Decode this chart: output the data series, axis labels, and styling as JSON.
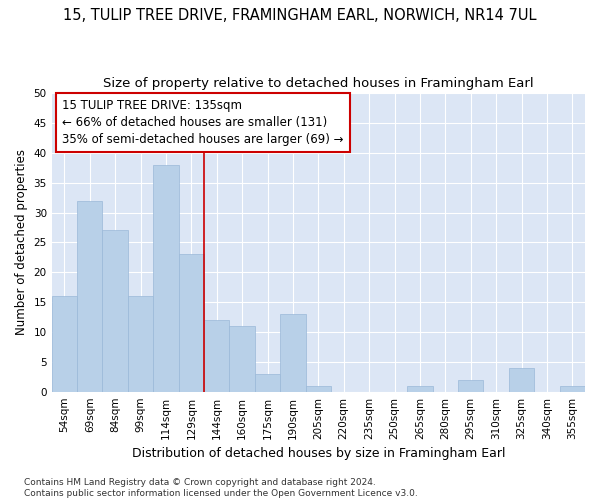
{
  "title": "15, TULIP TREE DRIVE, FRAMINGHAM EARL, NORWICH, NR14 7UL",
  "subtitle": "Size of property relative to detached houses in Framingham Earl",
  "xlabel": "Distribution of detached houses by size in Framingham Earl",
  "ylabel": "Number of detached properties",
  "categories": [
    "54sqm",
    "69sqm",
    "84sqm",
    "99sqm",
    "114sqm",
    "129sqm",
    "144sqm",
    "160sqm",
    "175sqm",
    "190sqm",
    "205sqm",
    "220sqm",
    "235sqm",
    "250sqm",
    "265sqm",
    "280sqm",
    "295sqm",
    "310sqm",
    "325sqm",
    "340sqm",
    "355sqm"
  ],
  "values": [
    16,
    32,
    27,
    16,
    38,
    23,
    12,
    11,
    3,
    13,
    1,
    0,
    0,
    0,
    1,
    0,
    2,
    0,
    4,
    0,
    1
  ],
  "bar_color": "#b8d0e8",
  "bar_edge_color": "#9ab8d8",
  "fig_background_color": "#ffffff",
  "axes_background_color": "#dce6f5",
  "grid_color": "#ffffff",
  "vline_color": "#cc0000",
  "annotation_text": "15 TULIP TREE DRIVE: 135sqm\n← 66% of detached houses are smaller (131)\n35% of semi-detached houses are larger (69) →",
  "annotation_box_color": "#ffffff",
  "annotation_box_edge": "#cc0000",
  "ylim": [
    0,
    50
  ],
  "yticks": [
    0,
    5,
    10,
    15,
    20,
    25,
    30,
    35,
    40,
    45,
    50
  ],
  "footer": "Contains HM Land Registry data © Crown copyright and database right 2024.\nContains public sector information licensed under the Open Government Licence v3.0.",
  "title_fontsize": 10.5,
  "subtitle_fontsize": 9.5,
  "xlabel_fontsize": 9,
  "ylabel_fontsize": 8.5,
  "tick_fontsize": 7.5,
  "annotation_fontsize": 8.5,
  "footer_fontsize": 6.5,
  "vline_x": 5.5
}
